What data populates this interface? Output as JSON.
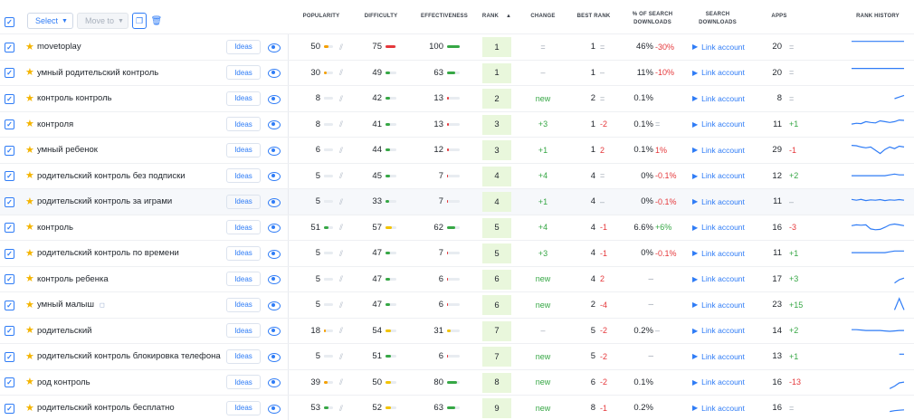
{
  "toolbar": {
    "select_label": "Select",
    "move_label": "Move to"
  },
  "columns": {
    "popularity": "POPULARITY",
    "difficulty": "DIFFICULTY",
    "effectiveness": "EFFECTIVENESS",
    "rank": "RANK",
    "change": "CHANGE",
    "best_rank": "BEST RANK",
    "pct_search_downloads": "% OF SEARCH DOWNLOADS",
    "search_downloads": "SEARCH DOWNLOADS",
    "apps": "APPS",
    "rank_history": "RANK HISTORY"
  },
  "labels": {
    "ideas": "Ideas",
    "link_account": "Link account"
  },
  "colors": {
    "accent": "#2f7cf6",
    "green": "#36a745",
    "red": "#e5383b",
    "yellow": "#f2c300",
    "orange": "#f59f00",
    "rank_bg": "#e9f7dc"
  },
  "rows": [
    {
      "keyword": "movetoplay",
      "popularity": "50",
      "pop_level": 0.5,
      "pop_color": "#f59f00",
      "difficulty": "75",
      "diff_level": 0.9,
      "diff_color": "#e5383b",
      "effectiveness": "100",
      "eff_level": 1.0,
      "eff_color": "#36a745",
      "rank": "1",
      "change": "=",
      "change_kind": "grey",
      "best_rank": "1",
      "best_delta": "=",
      "best_kind": "grey",
      "pct": "46%",
      "pct_delta": "-30%",
      "pct_kind": "red",
      "apps": "20",
      "apps_delta": "=",
      "apps_kind": "grey",
      "history": [
        0.15,
        0.15,
        0.15,
        0.15,
        0.15,
        0.15,
        0.15,
        0.15,
        0.15,
        0.15,
        0.15,
        0.15
      ]
    },
    {
      "keyword": "умный родительский контроль",
      "popularity": "30",
      "pop_level": 0.3,
      "pop_color": "#f59f00",
      "difficulty": "49",
      "diff_level": 0.45,
      "diff_color": "#36a745",
      "effectiveness": "63",
      "eff_level": 0.63,
      "eff_color": "#36a745",
      "rank": "1",
      "change": "–",
      "change_kind": "grey",
      "best_rank": "1",
      "best_delta": "–",
      "best_kind": "grey",
      "pct": "11%",
      "pct_delta": "-10%",
      "pct_kind": "red",
      "apps": "20",
      "apps_delta": "=",
      "apps_kind": "grey",
      "history": [
        0.2,
        0.2,
        0.2,
        0.2,
        0.2,
        0.2,
        0.2,
        0.2,
        0.2,
        0.2,
        0.2,
        0.2
      ]
    },
    {
      "keyword": "контроль контроль",
      "popularity": "8",
      "pop_level": 0.08,
      "pop_color": "#e8ecf1",
      "difficulty": "42",
      "diff_level": 0.4,
      "diff_color": "#36a745",
      "effectiveness": "13",
      "eff_level": 0.13,
      "eff_color": "#e5383b",
      "rank": "2",
      "change": "new",
      "change_kind": "green",
      "best_rank": "2",
      "best_delta": "=",
      "best_kind": "grey",
      "pct": "0.1%",
      "pct_delta": "",
      "pct_kind": "grey",
      "apps": "8",
      "apps_delta": "=",
      "apps_kind": "grey",
      "history": [
        null,
        null,
        null,
        null,
        null,
        null,
        null,
        null,
        null,
        0.5,
        0.4,
        0.3
      ]
    },
    {
      "keyword": "контроля",
      "popularity": "8",
      "pop_level": 0.08,
      "pop_color": "#e8ecf1",
      "difficulty": "41",
      "diff_level": 0.4,
      "diff_color": "#36a745",
      "effectiveness": "13",
      "eff_level": 0.13,
      "eff_color": "#e5383b",
      "rank": "3",
      "change": "+3",
      "change_kind": "green",
      "best_rank": "1",
      "best_delta": "-2",
      "best_kind": "red",
      "pct": "0.1%",
      "pct_delta": "=",
      "pct_kind": "grey",
      "apps": "11",
      "apps_delta": "+1",
      "apps_kind": "green",
      "history": [
        0.45,
        0.4,
        0.42,
        0.3,
        0.35,
        0.38,
        0.25,
        0.3,
        0.35,
        0.3,
        0.2,
        0.22
      ]
    },
    {
      "keyword": "умный ребенок",
      "popularity": "6",
      "pop_level": 0.06,
      "pop_color": "#e8ecf1",
      "difficulty": "44",
      "diff_level": 0.42,
      "diff_color": "#36a745",
      "effectiveness": "12",
      "eff_level": 0.12,
      "eff_color": "#e5383b",
      "rank": "3",
      "change": "+1",
      "change_kind": "green",
      "best_rank": "1",
      "best_delta": "2",
      "best_kind": "red",
      "pct": "0.1%",
      "pct_delta": "1%",
      "pct_kind": "red",
      "apps": "29",
      "apps_delta": "-1",
      "apps_kind": "red",
      "history": [
        0.2,
        0.22,
        0.3,
        0.35,
        0.3,
        0.5,
        0.7,
        0.45,
        0.3,
        0.4,
        0.25,
        0.3
      ]
    },
    {
      "keyword": "родительский контроль без подписки",
      "popularity": "5",
      "pop_level": 0.05,
      "pop_color": "#e8ecf1",
      "difficulty": "45",
      "diff_level": 0.42,
      "diff_color": "#36a745",
      "effectiveness": "7",
      "eff_level": 0.07,
      "eff_color": "#e5383b",
      "rank": "4",
      "change": "+4",
      "change_kind": "green",
      "best_rank": "4",
      "best_delta": "=",
      "best_kind": "grey",
      "pct": "0%",
      "pct_delta": "-0.1%",
      "pct_kind": "red",
      "apps": "12",
      "apps_delta": "+2",
      "apps_kind": "green",
      "history": [
        0.45,
        0.45,
        0.45,
        0.45,
        0.45,
        0.45,
        0.45,
        0.45,
        0.4,
        0.35,
        0.4,
        0.4
      ]
    },
    {
      "keyword": "родительский контроль за играми",
      "popularity": "5",
      "pop_level": 0.05,
      "pop_color": "#e8ecf1",
      "difficulty": "33",
      "diff_level": 0.33,
      "diff_color": "#36a745",
      "effectiveness": "7",
      "eff_level": 0.07,
      "eff_color": "#e5383b",
      "rank": "4",
      "change": "+1",
      "change_kind": "green",
      "best_rank": "4",
      "best_delta": "–",
      "best_kind": "grey",
      "pct": "0%",
      "pct_delta": "-0.1%",
      "pct_kind": "red",
      "apps": "11",
      "apps_delta": "–",
      "apps_kind": "grey",
      "history": [
        0.35,
        0.4,
        0.35,
        0.42,
        0.38,
        0.4,
        0.36,
        0.42,
        0.38,
        0.4,
        0.36,
        0.4
      ]
    },
    {
      "keyword": "контроль",
      "popularity": "51",
      "pop_level": 0.51,
      "pop_color": "#36a745",
      "difficulty": "57",
      "diff_level": 0.55,
      "diff_color": "#f2c300",
      "effectiveness": "62",
      "eff_level": 0.62,
      "eff_color": "#36a745",
      "rank": "5",
      "change": "+4",
      "change_kind": "green",
      "best_rank": "4",
      "best_delta": "-1",
      "best_kind": "red",
      "pct": "6.6%",
      "pct_delta": "+6%",
      "pct_kind": "green",
      "apps": "16",
      "apps_delta": "-3",
      "apps_kind": "red",
      "history": [
        0.35,
        0.3,
        0.32,
        0.3,
        0.55,
        0.6,
        0.58,
        0.45,
        0.3,
        0.25,
        0.3,
        0.35
      ]
    },
    {
      "keyword": "родительский контроль по времени",
      "popularity": "5",
      "pop_level": 0.05,
      "pop_color": "#e8ecf1",
      "difficulty": "47",
      "diff_level": 0.45,
      "diff_color": "#36a745",
      "effectiveness": "7",
      "eff_level": 0.07,
      "eff_color": "#e5383b",
      "rank": "5",
      "change": "+3",
      "change_kind": "green",
      "best_rank": "4",
      "best_delta": "-1",
      "best_kind": "red",
      "pct": "0%",
      "pct_delta": "-0.1%",
      "pct_kind": "red",
      "apps": "11",
      "apps_delta": "+1",
      "apps_kind": "green",
      "history": [
        0.45,
        0.45,
        0.45,
        0.45,
        0.45,
        0.45,
        0.45,
        0.45,
        0.4,
        0.35,
        0.35,
        0.35
      ]
    },
    {
      "keyword": "контроль ребенка",
      "popularity": "5",
      "pop_level": 0.05,
      "pop_color": "#e8ecf1",
      "difficulty": "47",
      "diff_level": 0.45,
      "diff_color": "#36a745",
      "effectiveness": "6",
      "eff_level": 0.06,
      "eff_color": "#e5383b",
      "rank": "6",
      "change": "new",
      "change_kind": "green",
      "best_rank": "4",
      "best_delta": "2",
      "best_kind": "red",
      "pct": "–",
      "pct_delta": "",
      "pct_kind": "grey",
      "apps": "17",
      "apps_delta": "+3",
      "apps_kind": "green",
      "history": [
        null,
        null,
        null,
        null,
        null,
        null,
        null,
        null,
        null,
        0.7,
        0.5,
        0.4
      ]
    },
    {
      "keyword": "умный малыш",
      "badge": "◻",
      "popularity": "5",
      "pop_level": 0.05,
      "pop_color": "#e8ecf1",
      "difficulty": "47",
      "diff_level": 0.45,
      "diff_color": "#36a745",
      "effectiveness": "6",
      "eff_level": 0.06,
      "eff_color": "#e5383b",
      "rank": "6",
      "change": "new",
      "change_kind": "green",
      "best_rank": "2",
      "best_delta": "-4",
      "best_kind": "red",
      "pct": "–",
      "pct_delta": "",
      "pct_kind": "grey",
      "apps": "23",
      "apps_delta": "+15",
      "apps_kind": "green",
      "history": [
        null,
        null,
        null,
        null,
        null,
        null,
        null,
        null,
        null,
        0.8,
        0.1,
        0.8
      ]
    },
    {
      "keyword": "родительский",
      "popularity": "18",
      "pop_level": 0.18,
      "pop_color": "#f59f00",
      "difficulty": "54",
      "diff_level": 0.52,
      "diff_color": "#f2c300",
      "effectiveness": "31",
      "eff_level": 0.31,
      "eff_color": "#f2c300",
      "rank": "7",
      "change": "–",
      "change_kind": "grey",
      "best_rank": "5",
      "best_delta": "-2",
      "best_kind": "red",
      "pct": "0.2%",
      "pct_delta": "–",
      "pct_kind": "grey",
      "apps": "14",
      "apps_delta": "+2",
      "apps_kind": "green",
      "history": [
        0.4,
        0.4,
        0.42,
        0.45,
        0.45,
        0.45,
        0.45,
        0.48,
        0.5,
        0.48,
        0.45,
        0.45
      ]
    },
    {
      "keyword": "родительский контроль блокировка телефона",
      "popularity": "5",
      "pop_level": 0.05,
      "pop_color": "#e8ecf1",
      "difficulty": "51",
      "diff_level": 0.5,
      "diff_color": "#36a745",
      "effectiveness": "6",
      "eff_level": 0.06,
      "eff_color": "#e5383b",
      "rank": "7",
      "change": "new",
      "change_kind": "green",
      "best_rank": "5",
      "best_delta": "-2",
      "best_kind": "red",
      "pct": "–",
      "pct_delta": "",
      "pct_kind": "grey",
      "apps": "13",
      "apps_delta": "+1",
      "apps_kind": "green",
      "history": [
        null,
        null,
        null,
        null,
        null,
        null,
        null,
        null,
        null,
        null,
        0.35,
        0.35
      ]
    },
    {
      "keyword": "род контроль",
      "popularity": "39",
      "pop_level": 0.39,
      "pop_color": "#f59f00",
      "difficulty": "50",
      "diff_level": 0.48,
      "diff_color": "#f2c300",
      "effectiveness": "80",
      "eff_level": 0.8,
      "eff_color": "#36a745",
      "rank": "8",
      "change": "new",
      "change_kind": "green",
      "best_rank": "6",
      "best_delta": "-2",
      "best_kind": "red",
      "pct": "0.1%",
      "pct_delta": "",
      "pct_kind": "grey",
      "apps": "16",
      "apps_delta": "-13",
      "apps_kind": "red",
      "history": [
        null,
        null,
        null,
        null,
        null,
        null,
        null,
        null,
        0.85,
        0.7,
        0.5,
        0.45
      ]
    },
    {
      "keyword": "родительский контроль бесплатно",
      "popularity": "53",
      "pop_level": 0.53,
      "pop_color": "#36a745",
      "difficulty": "52",
      "diff_level": 0.5,
      "diff_color": "#f2c300",
      "effectiveness": "63",
      "eff_level": 0.63,
      "eff_color": "#36a745",
      "rank": "9",
      "change": "new",
      "change_kind": "green",
      "best_rank": "8",
      "best_delta": "-1",
      "best_kind": "red",
      "pct": "0.2%",
      "pct_delta": "",
      "pct_kind": "grey",
      "apps": "16",
      "apps_delta": "=",
      "apps_kind": "grey",
      "history": [
        null,
        null,
        null,
        null,
        null,
        null,
        null,
        null,
        0.7,
        0.65,
        0.62,
        0.6
      ]
    }
  ]
}
